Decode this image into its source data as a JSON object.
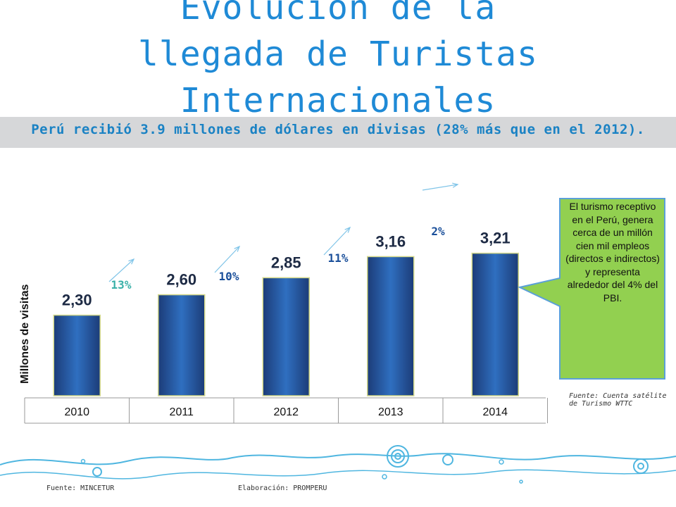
{
  "title": "Evolución de la llegada de Turistas Internacionales",
  "subtitle": "Perú recibió  3.9 millones de dólares en divisas (28% más que en el 2012).",
  "callout": {
    "text": "El turismo receptivo en el Perú, genera cerca de un millón cien mil empleos (directos e indirectos) y representa alrededor del 4% del PBI.",
    "source": "Fuente: Cuenta satélite de Turismo WTTC"
  },
  "footer": {
    "source": "Fuente: MINCETUR",
    "prepared_by": "Elaboración: PROMPERU"
  },
  "colors": {
    "bar": "#2f6fc0",
    "bar_dark": "#1c3c78",
    "growth_text": "#1a4f9a",
    "growth_text_first": "#39b0a8",
    "callout_fill": "#92d050",
    "callout_border": "#5aa0d8",
    "title": "#1f8ad6"
  },
  "chart_data": {
    "type": "bar",
    "categories": [
      "2010",
      "2011",
      "2012",
      "2013",
      "2014"
    ],
    "values": [
      2.3,
      2.6,
      2.85,
      3.16,
      3.21
    ],
    "value_labels": [
      "2,30",
      "2,60",
      "2,85",
      "3,16",
      "3,21"
    ],
    "growth_labels": [
      "13%",
      "10%",
      "11%",
      "2%"
    ],
    "ylabel": "Millones de visitas",
    "xlabel": "",
    "grid": false,
    "legend": "none"
  }
}
